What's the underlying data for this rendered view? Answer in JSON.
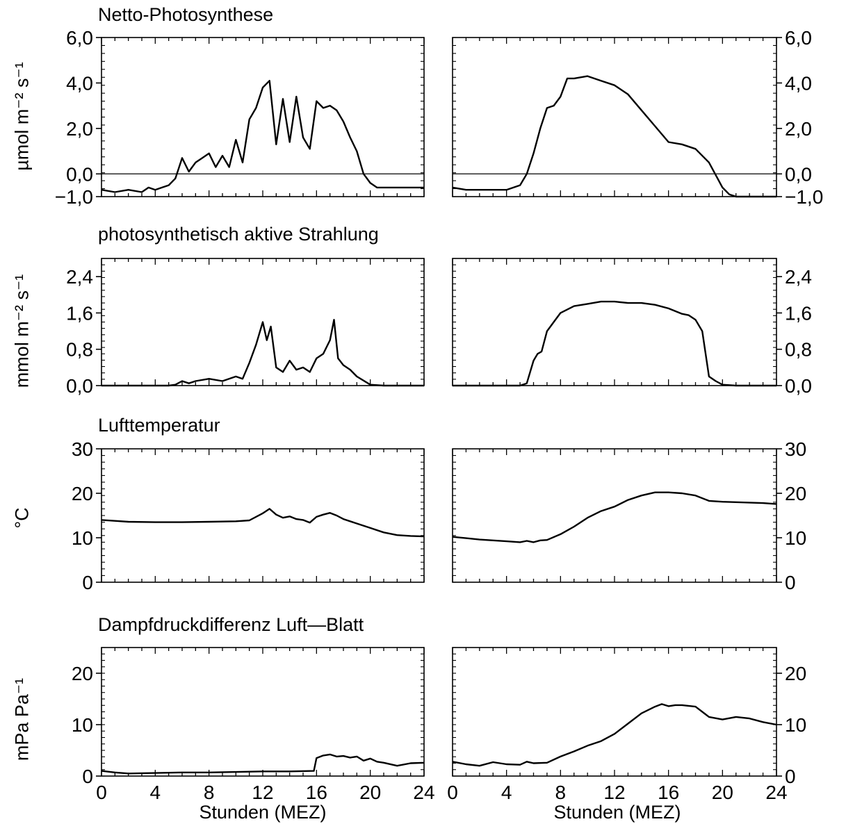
{
  "chart_data": [
    {
      "type": "line",
      "title": "Netto-Photosynthese",
      "ylabel": "µmol m⁻² s⁻¹",
      "xlabel": "",
      "xlim": [
        0,
        24
      ],
      "ylim": [
        -1.0,
        6.0
      ],
      "yticks": [
        "6,0",
        "4,0",
        "2,0",
        "0,0",
        "−1,0"
      ],
      "xticks": [],
      "zero_line": true,
      "series": [
        {
          "panel": "left",
          "x": [
            0,
            1,
            2,
            3,
            3.5,
            4,
            4.5,
            5,
            5.5,
            6,
            6.5,
            7,
            7.5,
            8,
            8.5,
            9,
            9.5,
            10,
            10.5,
            11,
            11.5,
            12,
            12.5,
            13,
            13.5,
            14,
            14.5,
            15,
            15.5,
            16,
            16.5,
            17,
            17.5,
            18,
            18.5,
            19,
            19.5,
            20,
            20.5,
            21,
            22,
            23,
            24
          ],
          "values": [
            -0.7,
            -0.8,
            -0.7,
            -0.8,
            -0.6,
            -0.7,
            -0.6,
            -0.5,
            -0.2,
            0.7,
            0.1,
            0.5,
            0.7,
            0.9,
            0.3,
            0.8,
            0.3,
            1.5,
            0.5,
            2.4,
            2.9,
            3.8,
            4.1,
            1.3,
            3.3,
            1.4,
            3.4,
            1.6,
            1.1,
            3.2,
            2.9,
            3.0,
            2.8,
            2.3,
            1.6,
            1.0,
            0.0,
            -0.4,
            -0.6,
            -0.6,
            -0.6,
            -0.6,
            -0.6
          ]
        },
        {
          "panel": "right",
          "x": [
            0,
            1,
            2,
            3,
            4,
            5,
            5.5,
            6,
            6.5,
            7,
            7.5,
            8,
            8.5,
            9,
            10,
            11,
            12,
            13,
            14,
            15,
            16,
            17,
            18,
            19,
            20,
            20.5,
            21,
            22,
            23,
            24
          ],
          "values": [
            -0.6,
            -0.7,
            -0.7,
            -0.7,
            -0.7,
            -0.5,
            0.0,
            0.9,
            2.0,
            2.9,
            3.0,
            3.4,
            4.2,
            4.2,
            4.3,
            4.1,
            3.9,
            3.5,
            2.8,
            2.1,
            1.4,
            1.3,
            1.1,
            0.5,
            -0.6,
            -0.9,
            -1.0,
            -1.0,
            -1.0,
            -1.0
          ]
        }
      ]
    },
    {
      "type": "line",
      "title": "photosynthetisch aktive Strahlung",
      "ylabel": "mmol m⁻² s⁻¹",
      "xlabel": "",
      "xlim": [
        0,
        24
      ],
      "ylim": [
        0,
        2.8
      ],
      "yticks": [
        "2,4",
        "1,6",
        "0,8",
        "0,0"
      ],
      "xticks": [],
      "zero_line": false,
      "series": [
        {
          "panel": "left",
          "x": [
            0,
            1,
            2,
            3,
            4,
            5,
            5.5,
            6,
            6.5,
            7,
            8,
            9,
            10,
            10.5,
            11,
            11.5,
            12,
            12.3,
            12.6,
            13,
            13.5,
            14,
            14.5,
            15,
            15.5,
            16,
            16.5,
            17,
            17.3,
            17.6,
            18,
            18.5,
            19,
            20,
            21,
            22,
            23,
            24
          ],
          "values": [
            0,
            0,
            0,
            0,
            0,
            0,
            0.02,
            0.1,
            0.05,
            0.1,
            0.15,
            0.1,
            0.2,
            0.15,
            0.5,
            0.9,
            1.4,
            1.0,
            1.3,
            0.4,
            0.3,
            0.55,
            0.35,
            0.4,
            0.3,
            0.6,
            0.7,
            1.0,
            1.45,
            0.6,
            0.45,
            0.35,
            0.2,
            0.02,
            0,
            0,
            0,
            0
          ]
        },
        {
          "panel": "right",
          "x": [
            0,
            1,
            2,
            3,
            4,
            5,
            5.5,
            6,
            6.3,
            6.6,
            7,
            7.5,
            8,
            9,
            10,
            11,
            12,
            13,
            14,
            15,
            16,
            17,
            17.5,
            18,
            18.5,
            19,
            19.5,
            20,
            21,
            22,
            23,
            24
          ],
          "values": [
            0,
            0,
            0,
            0,
            0,
            0,
            0.05,
            0.55,
            0.7,
            0.75,
            1.2,
            1.4,
            1.6,
            1.75,
            1.8,
            1.85,
            1.85,
            1.82,
            1.82,
            1.78,
            1.7,
            1.58,
            1.55,
            1.45,
            1.2,
            0.2,
            0.1,
            0.02,
            0,
            0,
            0,
            0
          ]
        }
      ]
    },
    {
      "type": "line",
      "title": "Lufttemperatur",
      "ylabel": "°C",
      "xlabel": "",
      "xlim": [
        0,
        24
      ],
      "ylim": [
        0,
        30
      ],
      "yticks": [
        "30",
        "20",
        "10",
        "0"
      ],
      "xticks": [],
      "zero_line": false,
      "series": [
        {
          "panel": "left",
          "x": [
            0,
            1,
            2,
            4,
            6,
            8,
            10,
            11,
            12,
            12.5,
            13,
            13.5,
            14,
            14.5,
            15,
            15.5,
            16,
            16.5,
            17,
            17.5,
            18,
            19,
            20,
            21,
            22,
            23,
            24
          ],
          "values": [
            14,
            13.8,
            13.6,
            13.5,
            13.5,
            13.6,
            13.7,
            13.9,
            15.5,
            16.5,
            15.2,
            14.5,
            14.8,
            14.2,
            14.0,
            13.4,
            14.7,
            15.2,
            15.6,
            15.0,
            14.2,
            13.2,
            12.2,
            11.2,
            10.6,
            10.4,
            10.3
          ]
        },
        {
          "panel": "right",
          "x": [
            0,
            1,
            2,
            3,
            4,
            5,
            5.5,
            6,
            6.5,
            7,
            8,
            9,
            10,
            11,
            12,
            13,
            14,
            15,
            16,
            17,
            18,
            19,
            20,
            21,
            22,
            23,
            24
          ],
          "values": [
            10.2,
            9.9,
            9.6,
            9.4,
            9.2,
            9.0,
            9.3,
            9.0,
            9.4,
            9.5,
            10.8,
            12.5,
            14.5,
            16,
            17,
            18.5,
            19.5,
            20.2,
            20.2,
            20,
            19.5,
            18.3,
            18.1,
            18,
            17.9,
            17.8,
            17.6
          ]
        }
      ]
    },
    {
      "type": "line",
      "title": "Dampfdruckdifferenz Luft—Blatt",
      "ylabel": "mPa Pa⁻¹",
      "xlabel": "Stunden (MEZ)",
      "xlim": [
        0,
        24
      ],
      "ylim": [
        0,
        25
      ],
      "yticks": [
        "20",
        "10",
        "0"
      ],
      "xticks": [
        "0",
        "4",
        "8",
        "12",
        "16",
        "20",
        "24"
      ],
      "zero_line": false,
      "series": [
        {
          "panel": "left",
          "x": [
            0,
            1,
            2,
            4,
            6,
            8,
            10,
            12,
            14,
            15.8,
            16,
            16.5,
            17,
            17.5,
            18,
            18.5,
            19,
            19.5,
            20,
            20.5,
            21,
            22,
            23,
            24
          ],
          "values": [
            1.0,
            0.7,
            0.5,
            0.6,
            0.7,
            0.7,
            0.8,
            0.9,
            0.9,
            1.0,
            3.5,
            4.0,
            4.2,
            3.8,
            3.9,
            3.6,
            3.8,
            3.0,
            3.4,
            2.8,
            2.6,
            2.0,
            2.5,
            2.6
          ]
        },
        {
          "panel": "right",
          "x": [
            0,
            1,
            2,
            3,
            4,
            5,
            5.5,
            6,
            7,
            8,
            9,
            10,
            11,
            12,
            13,
            14,
            15,
            15.5,
            16,
            16.5,
            17,
            18,
            19,
            20,
            21,
            22,
            23,
            24
          ],
          "values": [
            2.8,
            2.3,
            2.0,
            2.7,
            2.3,
            2.2,
            2.8,
            2.5,
            2.6,
            3.8,
            4.8,
            5.9,
            6.8,
            8.2,
            10.2,
            12.2,
            13.5,
            14.0,
            13.6,
            13.8,
            13.8,
            13.5,
            11.5,
            11.0,
            11.5,
            11.2,
            10.5,
            10.0
          ]
        }
      ]
    }
  ]
}
